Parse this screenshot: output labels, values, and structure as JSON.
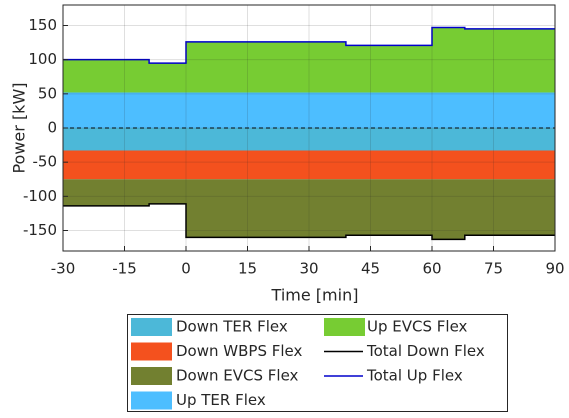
{
  "chart_data": {
    "type": "stacked_step_area",
    "x_label": "Time [min]",
    "y_label": "Power [kW]",
    "x": [
      -30,
      -9,
      0,
      39,
      60,
      68,
      90
    ],
    "xlim": [
      -30,
      90
    ],
    "xticks": [
      -30,
      -15,
      0,
      15,
      30,
      45,
      60,
      75,
      90
    ],
    "ylim": [
      -180,
      180
    ],
    "yticks": [
      -150,
      -100,
      -50,
      0,
      50,
      100,
      150
    ],
    "grid": true,
    "legend": "below",
    "series": [
      {
        "name": "Down TER Flex",
        "color": "#4cb8d8",
        "kind": "area",
        "values": [
          -33,
          -33,
          -33,
          -33,
          -33,
          -33,
          -33
        ]
      },
      {
        "name": "Down WBPS Flex",
        "color": "#f4511e",
        "kind": "area",
        "values": [
          -42,
          -42,
          -42,
          -42,
          -42,
          -42,
          -42
        ]
      },
      {
        "name": "Down EVCS Flex",
        "color": "#728030",
        "kind": "area",
        "values": [
          -39,
          -36,
          -85,
          -82,
          -88,
          -82,
          -82
        ]
      },
      {
        "name": "Up TER Flex",
        "color": "#4dbeff",
        "kind": "area",
        "values": [
          52,
          52,
          52,
          52,
          52,
          52,
          52
        ]
      },
      {
        "name": "Up EVCS Flex",
        "color": "#77cc33",
        "kind": "area",
        "values": [
          48,
          43,
          74,
          69,
          95,
          93,
          93
        ]
      },
      {
        "name": "Total Down Flex",
        "color": "#000000",
        "kind": "line",
        "values": [
          -114,
          -111,
          -160,
          -157,
          -163,
          -157,
          -157
        ]
      },
      {
        "name": "Total Up Flex",
        "color": "#0000cc",
        "kind": "line",
        "values": [
          100,
          95,
          126,
          121,
          147,
          145,
          145
        ]
      }
    ]
  }
}
